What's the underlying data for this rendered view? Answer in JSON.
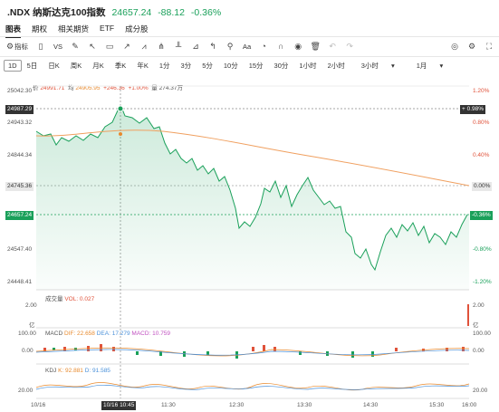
{
  "header": {
    "symbol": ".NDX",
    "name": "纳斯达克100指数",
    "price": "24657.24",
    "change": "-88.12",
    "change_pct": "-0.36%"
  },
  "tabs": [
    {
      "label": "图表",
      "active": true
    },
    {
      "label": "期权"
    },
    {
      "label": "相关期货"
    },
    {
      "label": "ETF"
    },
    {
      "label": "成分股"
    }
  ],
  "toolbar": {
    "indicator_label": "指标",
    "vs_label": "VS",
    "text_label": "Aa"
  },
  "periods": [
    "1D",
    "5日",
    "日K",
    "周K",
    "月K",
    "季K",
    "年K",
    "1分",
    "3分",
    "5分",
    "10分",
    "15分",
    "30分",
    "1小时",
    "2小时",
    "3小时",
    "1月"
  ],
  "stats": {
    "price_label": "价",
    "price_value": "24991.71",
    "avg_label": "均",
    "avg_value": "24905.95",
    "chg": "+246.36",
    "pct": "+1.00%",
    "vol_label": "量",
    "vol_value": "274.37万"
  },
  "y_left": [
    "25042.30",
    "24943.32",
    "24844.34",
    "24547.40",
    "24448.41"
  ],
  "y_right": [
    "1.20%",
    "0.80%",
    "0.40%",
    "-0.80%",
    "-1.20%"
  ],
  "tags": {
    "cross_price": "24987.29",
    "cross_pct": "0.98%",
    "prev_close": "24745.36",
    "prev_pct": "0.00%",
    "last_price": "24657.24",
    "last_pct": "-0.36%"
  },
  "volume": {
    "title": "成交量",
    "vol": "VOL: 0.027",
    "ymax": "2.00",
    "unit": "亿"
  },
  "macd": {
    "title": "MACD",
    "dif": "DIF: 22.658",
    "dea": "DEA: 17.279",
    "macd": "MACD: 10.759",
    "ytop": "100.00",
    "ymid": "0.00",
    "ybot": "-100.00",
    "rtop": "100.00",
    "rmid": "0.00"
  },
  "kdj": {
    "title": "KDJ",
    "k": "K: 92.881",
    "d": "D: 91.585",
    "yval": "20.00"
  },
  "time_axis": [
    "10/16",
    "11:30",
    "12:30",
    "13:30",
    "14:30",
    "15:30",
    "16:00"
  ],
  "crosshair_time": "10/16 10:45",
  "colors": {
    "up": "#e0523a",
    "down": "#1aa05a",
    "avg": "#f0a060"
  }
}
